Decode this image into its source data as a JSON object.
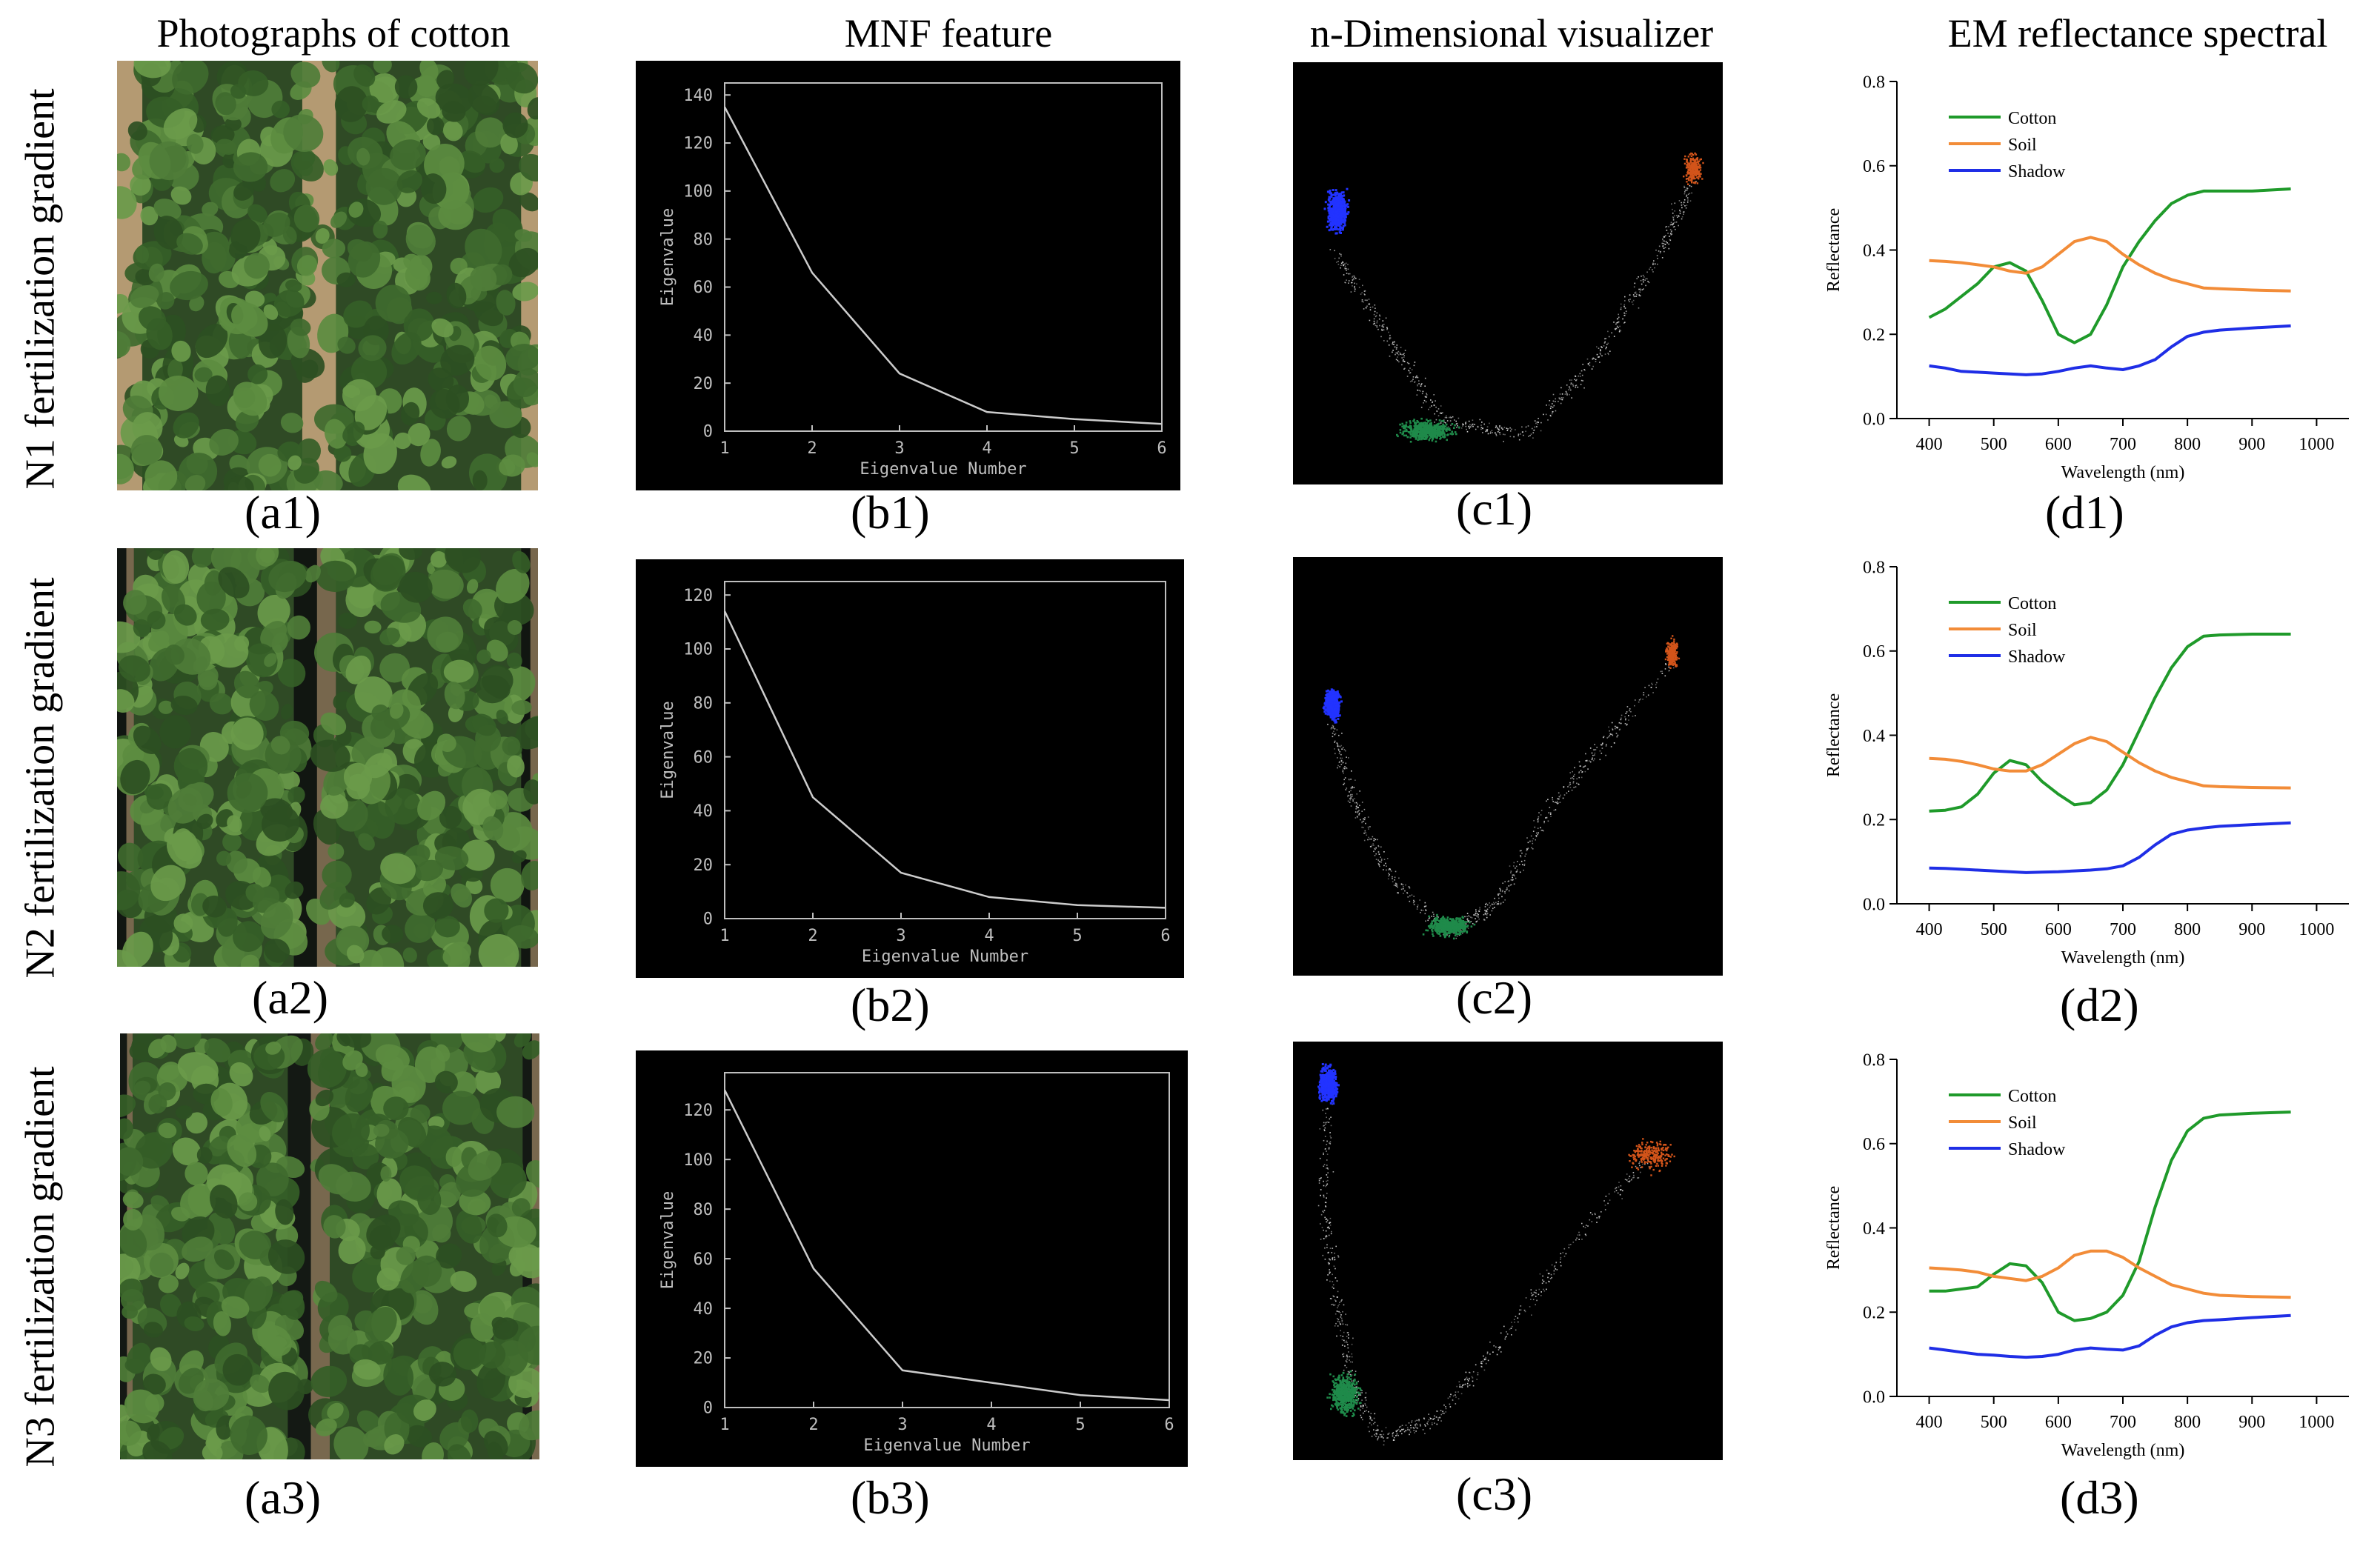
{
  "column_titles": [
    "Photographs of cotton",
    "MNF feature",
    "n-Dimensional visualizer",
    "EM reflectance spectral"
  ],
  "row_labels": [
    "N1 fertilization gradient",
    "N2 fertilization gradient",
    "N3 fertilization gradient"
  ],
  "panel_labels": {
    "a": [
      "(a1)",
      "(a2)",
      "(a3)"
    ],
    "b": [
      "(b1)",
      "(b2)",
      "(b3)"
    ],
    "c": [
      "(c1)",
      "(c2)",
      "(c3)"
    ],
    "d": [
      "(d1)",
      "(d2)",
      "(d3)"
    ]
  },
  "colors": {
    "cotton": "#1f9a2a",
    "soil": "#f28c38",
    "shadow": "#1f2ee6",
    "cluster_blue": "#2233ff",
    "cluster_green": "#1f8a4a",
    "cluster_orange": "#d2541a",
    "mnf_bg": "#000000",
    "mnf_line": "#cccccc"
  },
  "chart_data": [
    {
      "id": "b1",
      "type": "line",
      "xlabel": "Eigenvalue Number",
      "ylabel": "Eigenvalue",
      "x": [
        1,
        2,
        3,
        4,
        5,
        6
      ],
      "values": [
        135,
        66,
        24,
        8,
        5,
        3
      ],
      "xlim": [
        1,
        6
      ],
      "ylim": [
        0,
        145
      ],
      "yticks": [
        0,
        20,
        40,
        60,
        80,
        100,
        120,
        140
      ],
      "xticks": [
        1,
        2,
        3,
        4,
        5,
        6
      ]
    },
    {
      "id": "b2",
      "type": "line",
      "xlabel": "Eigenvalue Number",
      "ylabel": "Eigenvalue",
      "x": [
        1,
        2,
        3,
        4,
        5,
        6
      ],
      "values": [
        114,
        45,
        17,
        8,
        5,
        4
      ],
      "xlim": [
        1,
        6
      ],
      "ylim": [
        0,
        125
      ],
      "yticks": [
        0,
        20,
        40,
        60,
        80,
        100,
        120
      ],
      "xticks": [
        1,
        2,
        3,
        4,
        5,
        6
      ]
    },
    {
      "id": "b3",
      "type": "line",
      "xlabel": "Eigenvalue Number",
      "ylabel": "Eigenvalue",
      "x": [
        1,
        2,
        3,
        4,
        5,
        6
      ],
      "values": [
        128,
        56,
        15,
        10,
        5,
        3
      ],
      "xlim": [
        1,
        6
      ],
      "ylim": [
        0,
        135
      ],
      "yticks": [
        0,
        20,
        40,
        60,
        80,
        100,
        120
      ],
      "xticks": [
        1,
        2,
        3,
        4,
        5,
        6
      ]
    },
    {
      "id": "d1",
      "type": "line",
      "xlabel": "Wavelength (nm)",
      "ylabel": "Reflectance",
      "xlim": [
        350,
        1050
      ],
      "ylim": [
        0,
        0.8
      ],
      "xticks": [
        400,
        500,
        600,
        700,
        800,
        900,
        1000
      ],
      "yticks": [
        0.0,
        0.2,
        0.4,
        0.6,
        0.8
      ],
      "legend_position": "top-left",
      "x": [
        400,
        425,
        450,
        475,
        500,
        525,
        550,
        575,
        600,
        625,
        650,
        675,
        700,
        725,
        750,
        775,
        800,
        825,
        850,
        900,
        960
      ],
      "series": [
        {
          "name": "Cotton",
          "color_key": "cotton",
          "values": [
            0.24,
            0.26,
            0.29,
            0.32,
            0.36,
            0.37,
            0.35,
            0.28,
            0.2,
            0.18,
            0.2,
            0.27,
            0.36,
            0.42,
            0.47,
            0.51,
            0.53,
            0.54,
            0.54,
            0.54,
            0.545
          ]
        },
        {
          "name": "Soil",
          "color_key": "soil",
          "values": [
            0.375,
            0.373,
            0.37,
            0.365,
            0.36,
            0.35,
            0.345,
            0.36,
            0.39,
            0.42,
            0.43,
            0.42,
            0.39,
            0.365,
            0.345,
            0.33,
            0.32,
            0.31,
            0.308,
            0.305,
            0.303
          ]
        },
        {
          "name": "Shadow",
          "color_key": "shadow",
          "values": [
            0.125,
            0.12,
            0.112,
            0.11,
            0.108,
            0.106,
            0.104,
            0.106,
            0.112,
            0.12,
            0.125,
            0.12,
            0.116,
            0.125,
            0.14,
            0.17,
            0.195,
            0.205,
            0.21,
            0.215,
            0.22
          ]
        }
      ]
    },
    {
      "id": "d2",
      "type": "line",
      "xlabel": "Wavelength (nm)",
      "ylabel": "Reflectance",
      "xlim": [
        350,
        1050
      ],
      "ylim": [
        0,
        0.8
      ],
      "xticks": [
        400,
        500,
        600,
        700,
        800,
        900,
        1000
      ],
      "yticks": [
        0.0,
        0.2,
        0.4,
        0.6,
        0.8
      ],
      "legend_position": "top-left",
      "x": [
        400,
        425,
        450,
        475,
        500,
        525,
        550,
        575,
        600,
        625,
        650,
        675,
        700,
        725,
        750,
        775,
        800,
        825,
        850,
        900,
        960
      ],
      "series": [
        {
          "name": "Cotton",
          "color_key": "cotton",
          "values": [
            0.22,
            0.222,
            0.23,
            0.26,
            0.31,
            0.34,
            0.33,
            0.29,
            0.26,
            0.235,
            0.24,
            0.27,
            0.33,
            0.41,
            0.49,
            0.56,
            0.61,
            0.635,
            0.638,
            0.64,
            0.64
          ]
        },
        {
          "name": "Soil",
          "color_key": "soil",
          "values": [
            0.345,
            0.343,
            0.338,
            0.33,
            0.32,
            0.315,
            0.315,
            0.33,
            0.355,
            0.38,
            0.395,
            0.385,
            0.36,
            0.335,
            0.315,
            0.3,
            0.29,
            0.28,
            0.278,
            0.276,
            0.275
          ]
        },
        {
          "name": "Shadow",
          "color_key": "shadow",
          "values": [
            0.085,
            0.084,
            0.082,
            0.08,
            0.078,
            0.076,
            0.074,
            0.075,
            0.076,
            0.078,
            0.08,
            0.083,
            0.09,
            0.11,
            0.14,
            0.165,
            0.175,
            0.18,
            0.184,
            0.188,
            0.192
          ]
        }
      ]
    },
    {
      "id": "d3",
      "type": "line",
      "xlabel": "Wavelength (nm)",
      "ylabel": "Reflectance",
      "xlim": [
        350,
        1050
      ],
      "ylim": [
        0,
        0.8
      ],
      "xticks": [
        400,
        500,
        600,
        700,
        800,
        900,
        1000
      ],
      "yticks": [
        0.0,
        0.2,
        0.4,
        0.6,
        0.8
      ],
      "legend_position": "top-left",
      "x": [
        400,
        425,
        450,
        475,
        500,
        525,
        550,
        575,
        600,
        625,
        650,
        675,
        700,
        725,
        750,
        775,
        800,
        825,
        850,
        900,
        960
      ],
      "series": [
        {
          "name": "Cotton",
          "color_key": "cotton",
          "values": [
            0.25,
            0.25,
            0.255,
            0.26,
            0.29,
            0.315,
            0.31,
            0.27,
            0.2,
            0.18,
            0.185,
            0.2,
            0.24,
            0.32,
            0.45,
            0.56,
            0.63,
            0.66,
            0.668,
            0.672,
            0.675
          ]
        },
        {
          "name": "Soil",
          "color_key": "soil",
          "values": [
            0.305,
            0.303,
            0.3,
            0.295,
            0.285,
            0.28,
            0.275,
            0.285,
            0.305,
            0.335,
            0.345,
            0.345,
            0.33,
            0.305,
            0.285,
            0.265,
            0.255,
            0.245,
            0.24,
            0.237,
            0.235
          ]
        },
        {
          "name": "Shadow",
          "color_key": "shadow",
          "values": [
            0.115,
            0.11,
            0.105,
            0.1,
            0.098,
            0.095,
            0.093,
            0.095,
            0.1,
            0.11,
            0.115,
            0.112,
            0.11,
            0.12,
            0.145,
            0.165,
            0.175,
            0.18,
            0.182,
            0.187,
            0.192
          ]
        }
      ]
    }
  ]
}
